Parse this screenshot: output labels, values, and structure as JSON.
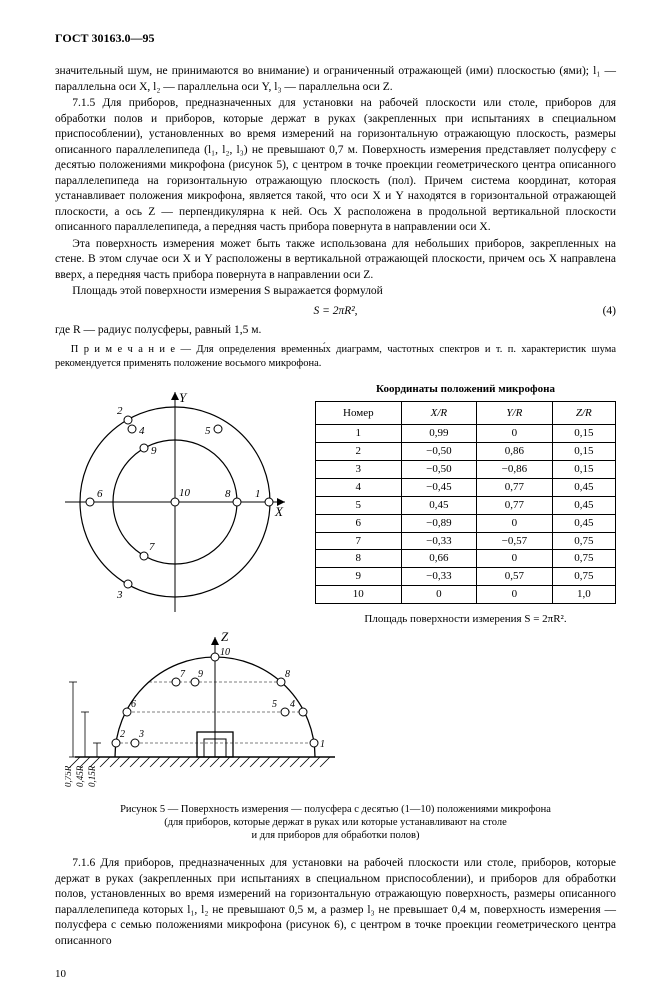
{
  "header": "ГОСТ 30163.0—95",
  "p1": "значительный шум, не принимаются во внимание) и ограниченный отражающей (ими) плоскостью (ями); l₁ — параллельна оси X, l₂ — параллельна оси Y, l₃ — параллельна оси Z.",
  "p2": "7.1.5 Для приборов, предназначенных для установки на рабочей плоскости или столе, приборов для обработки полов и приборов, которые держат в руках (закрепленных при испытаниях в специальном приспособлении), установленных во время измерений на горизонтальную отражающую плоскость, размеры описанного параллелепипеда (l₁, l₂, l₃) не превышают 0,7 м. Поверхность измерения представляет полусферу с десятью положениями микрофона (рисунок 5), с центром в точке проекции геометрического центра описанного параллелепипеда на горизонтальную отражающую плоскость (пол). Причем система координат, которая устанавливает положения микрофона, является такой, что оси X и Y находятся в горизонтальной отражающей плоскости, а ось Z — перпендикулярна к ней. Ось X расположена в продольной вертикальной плоскости описанного параллелепипеда, а передняя часть прибора повернута в направлении оси X.",
  "p3": "Эта поверхность измерения может быть также использована для небольших приборов, закрепленных на стене. В этом случае оси X и Y расположены в вертикальной отражающей плоскости, причем ось X направлена вверх, а передняя часть прибора повернута в направлении оси Z.",
  "p4": "Площадь этой поверхности измерения S выражается формулой",
  "formula": "S = 2πR²,",
  "formula_num": "(4)",
  "p5": "где R — радиус полусферы, равный 1,5 м.",
  "note": "П р и м е ч а н и е — Для определения временны́х диаграмм, частотных спектров и т. п. характеристик шума рекомендуется применять положение восьмого микрофона.",
  "table_caption": "Координаты положений микрофона",
  "table_headers": [
    "Номер",
    "X/R",
    "Y/R",
    "Z/R"
  ],
  "table_rows": [
    [
      "1",
      "0,99",
      "0",
      "0,15"
    ],
    [
      "2",
      "−0,50",
      "0,86",
      "0,15"
    ],
    [
      "3",
      "−0,50",
      "−0,86",
      "0,15"
    ],
    [
      "4",
      "−0,45",
      "0,77",
      "0,45"
    ],
    [
      "5",
      "0,45",
      "0,77",
      "0,45"
    ],
    [
      "6",
      "−0,89",
      "0",
      "0,45"
    ],
    [
      "7",
      "−0,33",
      "−0,57",
      "0,75"
    ],
    [
      "8",
      "0,66",
      "0",
      "0,75"
    ],
    [
      "9",
      "−0,33",
      "0,57",
      "0,75"
    ],
    [
      "10",
      "0",
      "0",
      "1,0"
    ]
  ],
  "surface_formula": "Площадь поверхности измерения S = 2πR².",
  "fig_caption_line1": "Рисунок 5 — Поверхность измерения — полусфера с десятью (1—10) положениями микрофона",
  "fig_caption_line2": "(для приборов, которые держат в руках или которые устанавливают на столе",
  "fig_caption_line3": "и для приборов для обработки полов)",
  "p6": "7.1.6 Для приборов, предназначенных для установки на рабочей плоскости или столе, приборов, которые держат в руках (закрепленных при испытаниях в специальном приспособлении), и приборов для обработки полов, установленных во время измерений на горизонтальную отражающую поверхность, размеры описанного параллелепипеда которых l₁, l₂ не превышают 0,5 м, а размер l₃ не превышает 0,4 м, поверхность измерения — полусфера с семью положениями микрофона (рисунок 6), с центром в точке проекции геометрического центра описанного",
  "pagenum": "10",
  "diagram_top": {
    "labels": {
      "Y": "Y",
      "X": "X",
      "n1": "1",
      "n2": "2",
      "n3": "3",
      "n4": "4",
      "n5": "5",
      "n6": "6",
      "n7": "7",
      "n8": "8",
      "n9": "9",
      "n10": "10"
    },
    "stroke": "#000000",
    "outer_r": 95,
    "inner_r": 62
  },
  "diagram_bottom": {
    "labels": {
      "Z": "Z",
      "n1": "1",
      "n2": "2",
      "n3": "3",
      "n4": "4",
      "n5": "5",
      "n6": "6",
      "n7": "7",
      "n8": "8",
      "n9": "9",
      "n10": "10",
      "d1": "0,15R",
      "d2": "0,45R",
      "d3": "0,75R"
    },
    "stroke": "#000000"
  }
}
